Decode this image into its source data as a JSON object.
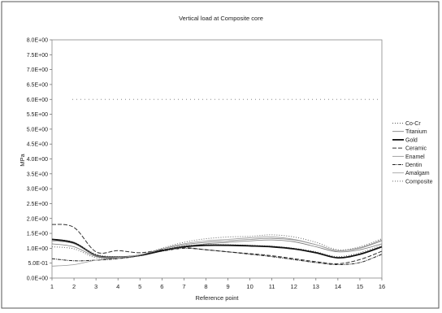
{
  "chart_data": {
    "type": "line",
    "title": "Vertical load at Composite core",
    "xlabel": "Reference point",
    "ylabel": "MPa",
    "x": [
      1,
      2,
      3,
      4,
      5,
      6,
      7,
      8,
      9,
      10,
      11,
      12,
      13,
      14,
      15,
      16
    ],
    "ylim": [
      0,
      8
    ],
    "yticks": [
      0,
      0.5,
      1.0,
      1.5,
      2.0,
      2.5,
      3.0,
      3.5,
      4.0,
      4.5,
      5.0,
      5.5,
      6.0,
      6.5,
      7.0,
      7.5,
      8.0
    ],
    "ytick_labels": [
      "0.0E+00",
      "5.0E-01",
      "1.0E+00",
      "1.5E+00",
      "2.0E+00",
      "2.5E+00",
      "3.0E+00",
      "3.5E+00",
      "4.0E+00",
      "4.5E+00",
      "5.0E+00",
      "5.5E+00",
      "6.0E+00",
      "6.5E+00",
      "7.0E+00",
      "7.5E+00",
      "8.0E+00"
    ],
    "xtick_labels": [
      "1",
      "2",
      "3",
      "4",
      "5",
      "6",
      "7",
      "8",
      "9",
      "10",
      "11",
      "12",
      "13",
      "14",
      "15",
      "16"
    ],
    "grid": false,
    "legend_position": "right",
    "series": [
      {
        "name": "Co-Cr",
        "color": "#555555",
        "dash": "1,2",
        "width": 1,
        "values": [
          1.3,
          1.2,
          0.8,
          0.72,
          0.78,
          0.95,
          1.08,
          1.12,
          1.12,
          1.1,
          1.07,
          1.0,
          0.88,
          0.72,
          0.85,
          1.1
        ]
      },
      {
        "name": "Titanium",
        "color": "#777777",
        "dash": "",
        "width": 0.8,
        "values": [
          1.15,
          1.05,
          0.72,
          0.68,
          0.75,
          0.92,
          1.05,
          1.15,
          1.2,
          1.25,
          1.28,
          1.22,
          1.05,
          0.88,
          0.95,
          1.15
        ]
      },
      {
        "name": "Gold",
        "color": "#111111",
        "dash": "",
        "width": 1.8,
        "values": [
          1.3,
          1.18,
          0.76,
          0.7,
          0.76,
          0.92,
          1.05,
          1.1,
          1.1,
          1.08,
          1.05,
          0.98,
          0.85,
          0.68,
          0.8,
          1.05
        ]
      },
      {
        "name": "Ceramic",
        "color": "#333333",
        "dash": "5,2",
        "width": 1,
        "values": [
          1.8,
          1.7,
          0.88,
          0.92,
          0.85,
          0.95,
          1.02,
          0.95,
          0.88,
          0.82,
          0.75,
          0.65,
          0.55,
          0.48,
          0.62,
          0.9
        ]
      },
      {
        "name": "Enamel",
        "color": "#888888",
        "dash": "",
        "width": 0.8,
        "values": [
          1.25,
          1.15,
          0.75,
          0.7,
          0.78,
          0.98,
          1.12,
          1.2,
          1.25,
          1.3,
          1.33,
          1.28,
          1.12,
          0.92,
          1.0,
          1.25
        ]
      },
      {
        "name": "Dentin",
        "color": "#222222",
        "dash": "4,1,1,1",
        "width": 1,
        "values": [
          0.65,
          0.58,
          0.6,
          0.65,
          0.75,
          0.9,
          1.0,
          0.95,
          0.88,
          0.8,
          0.72,
          0.62,
          0.52,
          0.45,
          0.52,
          0.8
        ]
      },
      {
        "name": "Amalgam",
        "color": "#999999",
        "dash": "",
        "width": 0.8,
        "values": [
          0.4,
          0.45,
          0.6,
          0.68,
          0.78,
          0.98,
          1.15,
          1.25,
          1.3,
          1.35,
          1.38,
          1.3,
          1.12,
          0.92,
          1.02,
          1.28
        ]
      },
      {
        "name": "Composite",
        "color": "#666666",
        "dash": "1,2",
        "width": 1,
        "values": [
          1.05,
          0.98,
          0.68,
          0.66,
          0.76,
          1.0,
          1.2,
          1.32,
          1.38,
          1.4,
          1.45,
          1.38,
          1.2,
          0.95,
          1.05,
          1.32
        ]
      }
    ],
    "reference_line": {
      "y": 6.0,
      "color": "#888888"
    }
  }
}
